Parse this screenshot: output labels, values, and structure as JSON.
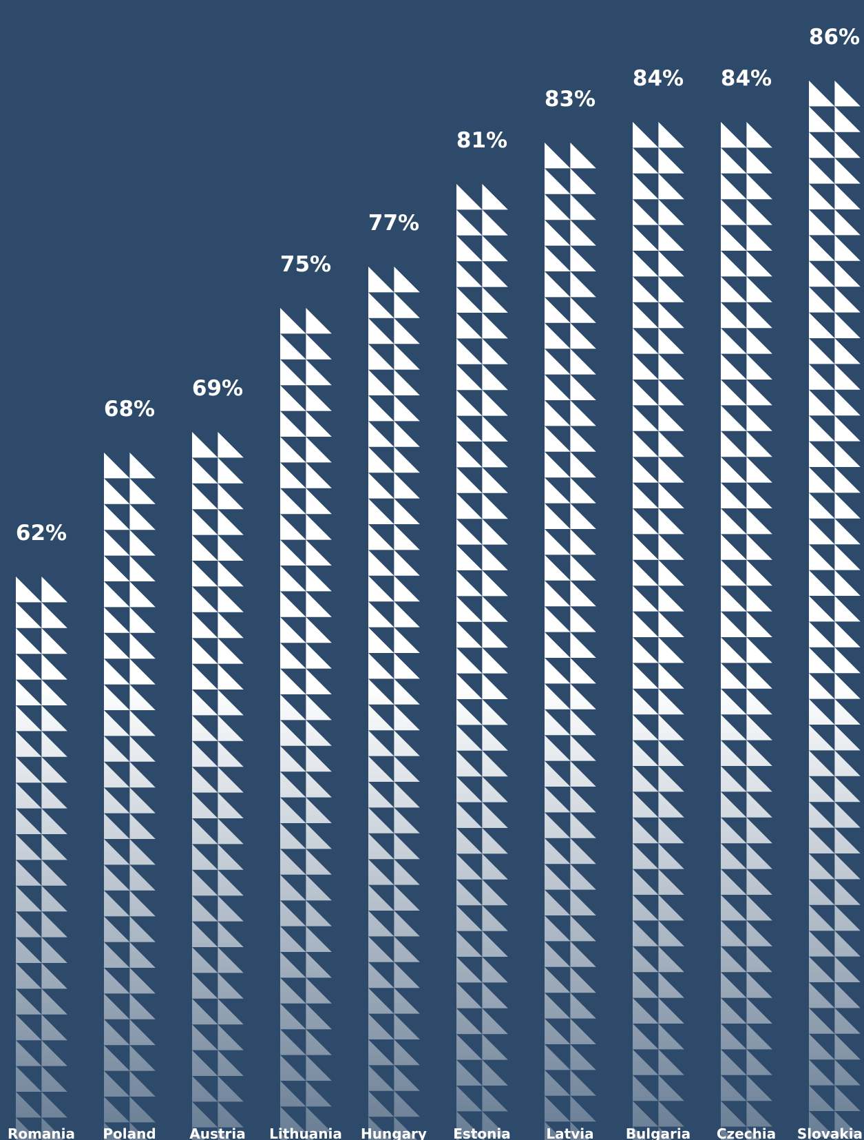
{
  "colors": {
    "background": "#2d4a6a",
    "bar_top": "#ffffff",
    "bar_bottom": "#6f849d",
    "text": "#ffffff"
  },
  "chart_data": {
    "type": "bar",
    "title": "",
    "xlabel": "",
    "ylabel": "",
    "categories": [
      "Romania",
      "Poland",
      "Austria",
      "Lithuania",
      "Hungary",
      "Estonia",
      "Latvia",
      "Bulgaria",
      "Czechia",
      "Slovakia"
    ],
    "values": [
      62,
      68,
      69,
      75,
      77,
      81,
      83,
      84,
      84,
      86
    ],
    "value_labels": [
      "62%",
      "68%",
      "69%",
      "75%",
      "77%",
      "81%",
      "83%",
      "84%",
      "84%",
      "86%"
    ],
    "unit": "%",
    "grid": false,
    "legend": "none",
    "mark_style": "stacked-triangles"
  }
}
